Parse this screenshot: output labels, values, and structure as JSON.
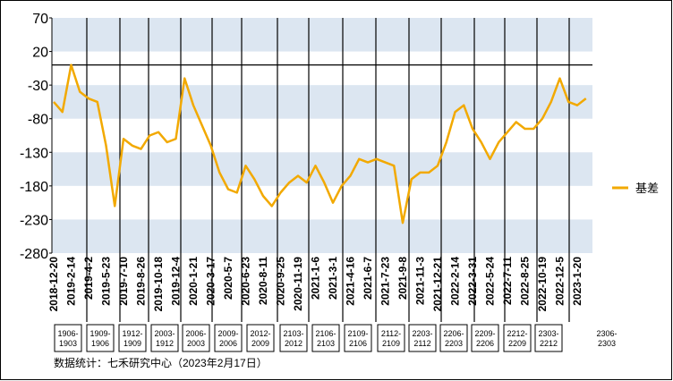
{
  "chart_data": {
    "type": "line",
    "categories": [
      "2018-12-20",
      null,
      "2019-2-14",
      null,
      "2019-4-2",
      null,
      "2019-5-23",
      null,
      "2019-7-10",
      null,
      "2019-8-26",
      null,
      "2019-10-18",
      null,
      "2019-12-4",
      null,
      "2020-1-21",
      null,
      "2020-3-17",
      null,
      "2020-5-7",
      null,
      "2020-6-23",
      null,
      "2020-8-11",
      null,
      "2020-9-25",
      null,
      "2020-11-19",
      null,
      "2021-1-6",
      null,
      "2021-3-1",
      null,
      "2021-4-16",
      null,
      "2021-6-7",
      null,
      "2021-7-23",
      null,
      "2021-9-8",
      null,
      "2021-11-3",
      null,
      "2021-12-21",
      null,
      "2022-2-14",
      null,
      "2022-3-31",
      null,
      "2022-5-24",
      null,
      "2022-7-11",
      null,
      "2022-8-25",
      null,
      "2022-10-19",
      null,
      "2022-12-5",
      null,
      "2023-1-20",
      null
    ],
    "series": [
      {
        "name": "基差",
        "color": "#f2a900",
        "values": [
          -55,
          -70,
          0,
          -40,
          -50,
          -55,
          -120,
          -210,
          -110,
          -120,
          -125,
          -105,
          -100,
          -115,
          -110,
          -20,
          -60,
          -90,
          -120,
          -160,
          -185,
          -190,
          -150,
          -170,
          -195,
          -210,
          -190,
          -175,
          -165,
          -175,
          -150,
          -175,
          -205,
          -180,
          -165,
          -140,
          -145,
          -140,
          -145,
          -150,
          -235,
          -170,
          -160,
          -160,
          -150,
          -115,
          -70,
          -60,
          -95,
          -115,
          -140,
          -115,
          -100,
          -85,
          -95,
          -95,
          -80,
          -55,
          -20,
          -55,
          -60,
          -50
        ]
      }
    ],
    "ylim": [
      -280,
      70
    ],
    "yticks": [
      -280,
      -230,
      -180,
      -130,
      -80,
      -30,
      20,
      70
    ],
    "contracts": [
      "1906-1903",
      "1909-1906",
      "1912-1909",
      "2003-1912",
      "2006-2003",
      "2009-2006",
      "2012-2009",
      "2103-2012",
      "2106-2103",
      "2109-2106",
      "2112-2109",
      "2203-2112",
      "2206-2203",
      "2209-2206",
      "2212-2209",
      "2303-2212",
      "2306-2303"
    ],
    "note": "数据统计：七禾研究中心（2023年2月17日）",
    "legend": "right"
  }
}
